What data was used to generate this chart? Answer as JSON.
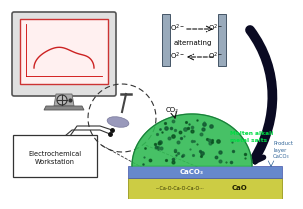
{
  "bg_color": "#ffffff",
  "label_electrochemical": "Electrochemical\nWorkstation",
  "label_alternating": "alternating",
  "label_molten": "Molten alkali\nmetal salts",
  "label_product": "Product\nlayer\nCaCO₃",
  "label_caco3": "CaCO₃",
  "label_cao": "CaO",
  "label_chain": "···Ca-O-Ca-O-Ca-O···",
  "label_co2": "CO₂",
  "monitor_body_color": "#e0e0e0",
  "monitor_edge_color": "#555555",
  "screen_bg": "#fff0f0",
  "screen_border": "#cc3333",
  "plot_line_color": "#cc2222",
  "stand_color": "#aaaaaa",
  "base_color": "#888888",
  "salt_green_dark": "#1a7a3a",
  "salt_green_light": "#33bb55",
  "caco3_color": "#6688cc",
  "cao_color": "#cccc44",
  "arrow_big_color": "#0a0a22",
  "bar_color": "#99aabb",
  "dashed_color": "#333333"
}
